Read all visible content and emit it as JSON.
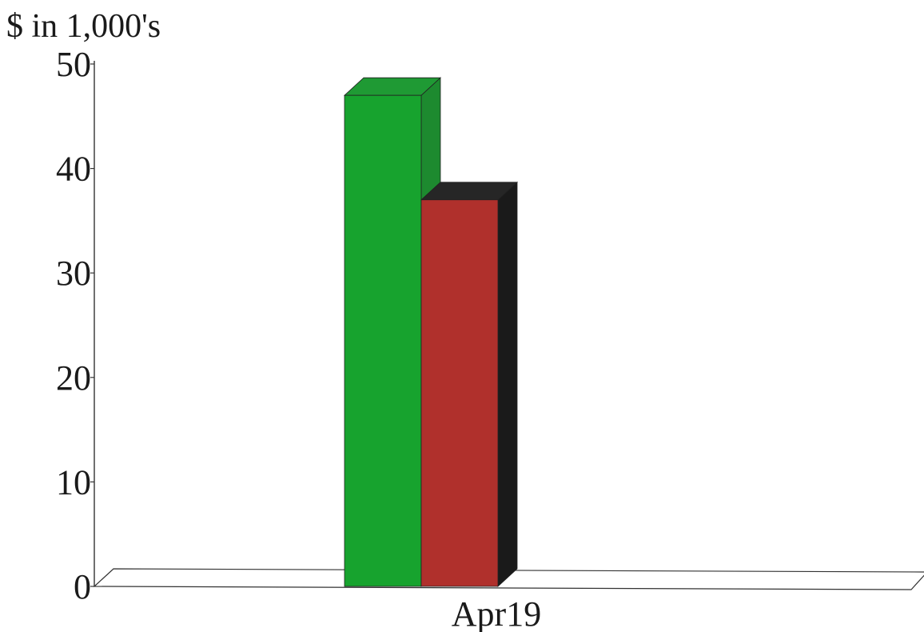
{
  "chart_data": {
    "type": "bar",
    "title": "",
    "ylabel": "$ in 1,000's",
    "xlabel": "",
    "categories": [
      "Apr19"
    ],
    "series": [
      {
        "values": [
          47
        ],
        "color": "#17a32e",
        "side_color": "#1d8a2f",
        "top_color": "#1f9a34"
      },
      {
        "values": [
          37
        ],
        "color": "#b0302c",
        "side_color": "#1a1a1a",
        "top_color": "#262626"
      }
    ],
    "ylim": [
      0,
      50
    ],
    "yticks": [
      "0",
      "10",
      "20",
      "30",
      "40",
      "50"
    ],
    "grid": false,
    "style": "3d"
  }
}
